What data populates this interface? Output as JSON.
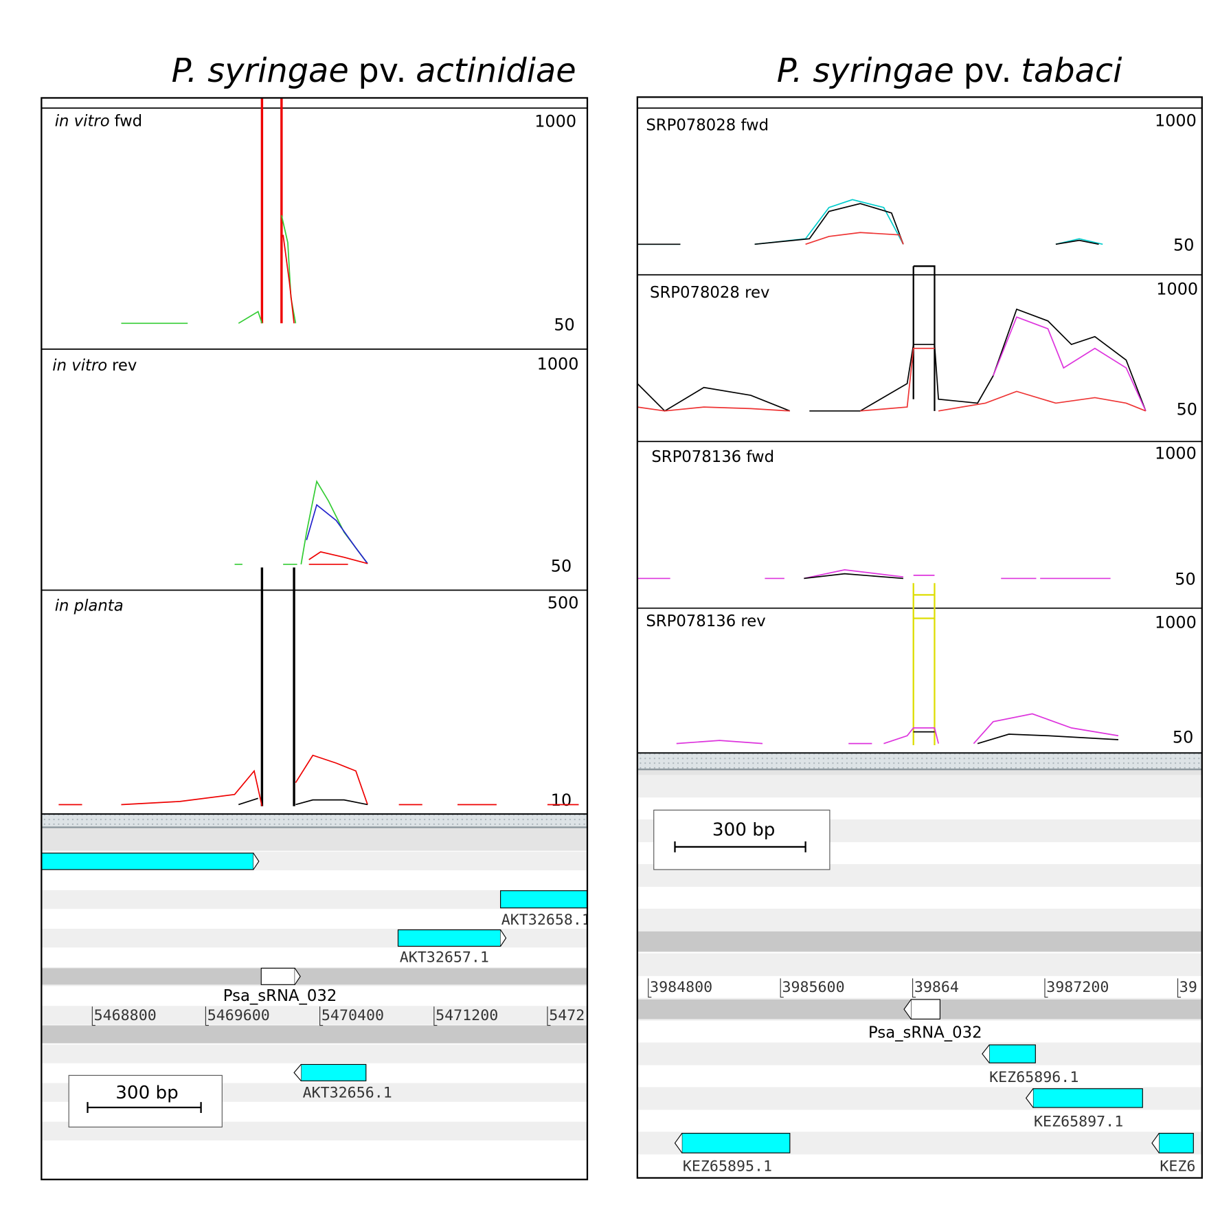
{
  "panels": [
    {
      "title": [
        "P. syringae",
        "pv.",
        "actinidiae"
      ],
      "tracks": [
        {
          "label": [
            "in vitro",
            "fwd"
          ],
          "max": 1000,
          "min": 50
        },
        {
          "label": [
            "in vitro",
            "rev"
          ],
          "max": 1000,
          "min": 50
        },
        {
          "label": [
            "in planta"
          ],
          "max": 500,
          "min": 10
        }
      ],
      "coordinates": [
        "5468800",
        "5469600",
        "5470400",
        "5471200",
        "5472"
      ],
      "features": [
        {
          "label": "AKT32658.1"
        },
        {
          "label": "AKT32657.1"
        },
        {
          "label": "Psa_sRNA_032"
        },
        {
          "label": "AKT32656.1"
        }
      ],
      "scale_bar": "300 bp"
    },
    {
      "title": [
        "P. syringae",
        "pv.",
        "tabaci"
      ],
      "tracks": [
        {
          "label": [
            "SRP078028 fwd"
          ],
          "max": 1000,
          "min": 50
        },
        {
          "label": [
            "SRP078028 rev"
          ],
          "max": 1000,
          "min": 50
        },
        {
          "label": [
            "SRP078136 fwd"
          ],
          "max": 1000,
          "min": 50
        },
        {
          "label": [
            "SRP078136 rev"
          ],
          "max": 1000,
          "min": 50
        }
      ],
      "coordinates": [
        "3984800",
        "3985600",
        "39864",
        "3987200",
        "39"
      ],
      "features": [
        {
          "label": "Psa_sRNA_032"
        },
        {
          "label": "KEZ65896.1"
        },
        {
          "label": "KEZ65897.1"
        },
        {
          "label": "KEZ65895.1"
        },
        {
          "label": "KEZ6"
        }
      ],
      "scale_bar": "300 bp"
    }
  ]
}
